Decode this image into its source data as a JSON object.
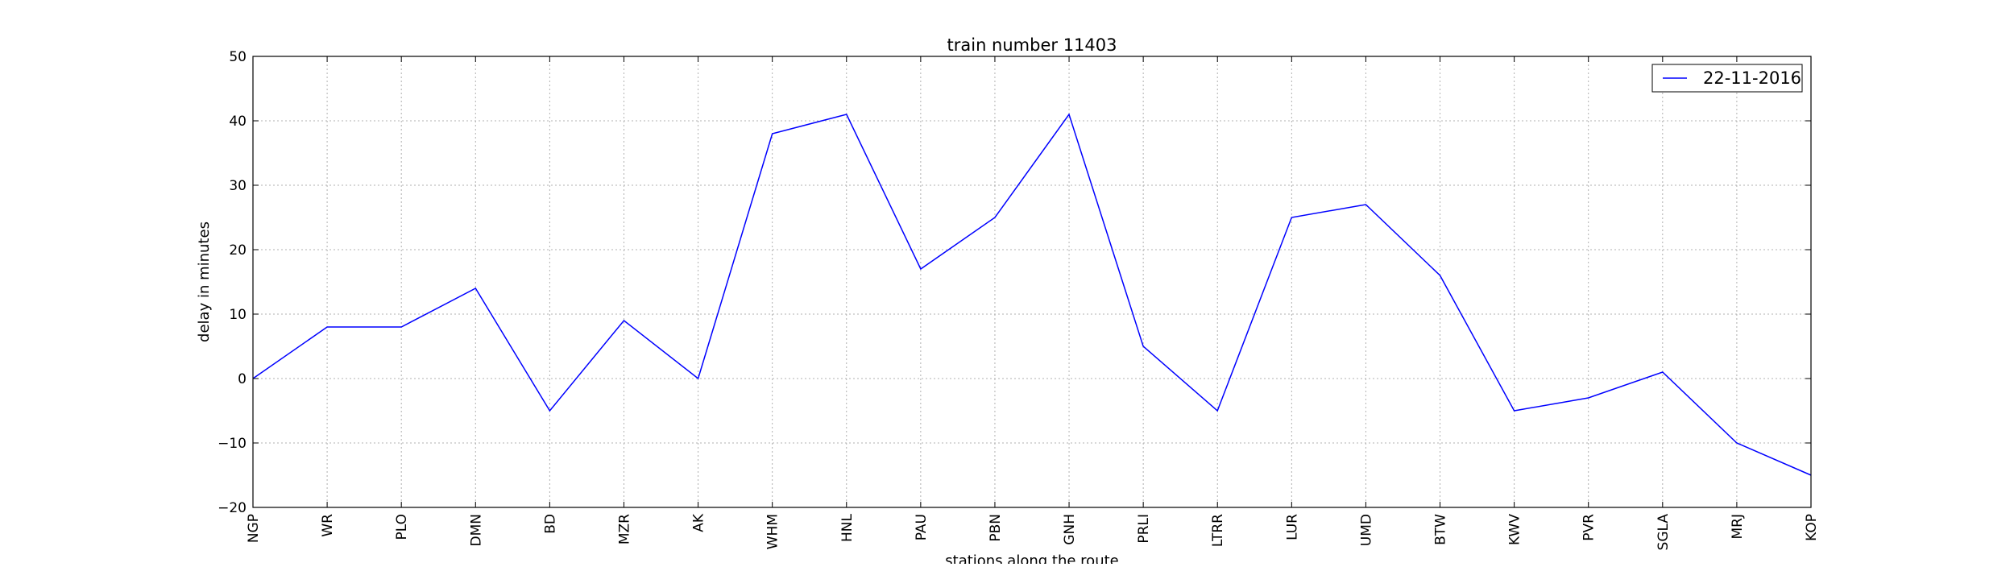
{
  "chart_data": {
    "type": "line",
    "title": "train number 11403",
    "xlabel": "stations along the route",
    "ylabel": "delay in minutes",
    "categories": [
      "NGP",
      "WR",
      "PLO",
      "DMN",
      "BD",
      "MZR",
      "AK",
      "WHM",
      "HNL",
      "PAU",
      "PBN",
      "GNH",
      "PRLI",
      "LTRR",
      "LUR",
      "UMD",
      "BTW",
      "KWV",
      "PVR",
      "SGLA",
      "MRJ",
      "KOP"
    ],
    "series": [
      {
        "name": "22-11-2016",
        "color": "#0000ff",
        "values": [
          0,
          8,
          8,
          14,
          -5,
          9,
          0,
          38,
          41,
          17,
          25,
          41,
          5,
          -5,
          25,
          27,
          16,
          -5,
          -3,
          1,
          -10,
          -15
        ]
      }
    ],
    "ylim": [
      -20,
      50
    ],
    "yticks": [
      -20,
      -10,
      0,
      10,
      20,
      30,
      40,
      50
    ],
    "grid": true,
    "legend_position": "top-right"
  }
}
